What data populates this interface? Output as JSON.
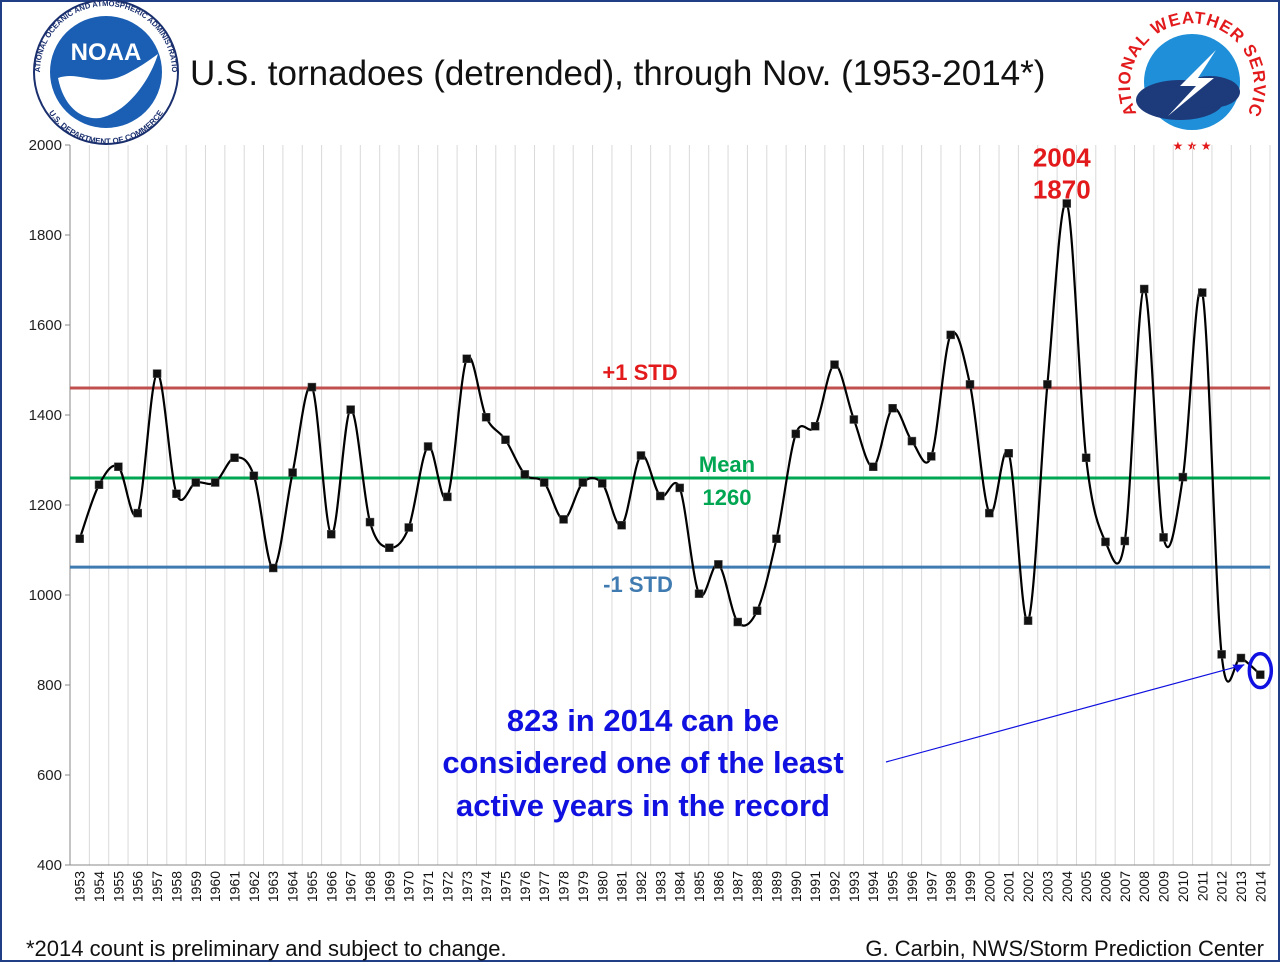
{
  "header": {
    "title": "U.S. tornadoes (detrended), through Nov. (1953-2014*)"
  },
  "footer": {
    "note": "*2014 count is preliminary and subject to change.",
    "credit": "G. Carbin, NWS/Storm Prediction Center"
  },
  "logos": {
    "noaa": {
      "center": "NOAA",
      "ring_top": "NATIONAL OCEANIC AND ATMOSPHERIC ADMINISTRATION",
      "ring_bottom": "U.S. DEPARTMENT OF COMMERCE"
    },
    "nws": {
      "ring": "NATIONAL WEATHER SERVICE"
    }
  },
  "colors": {
    "series": "#000000",
    "plus_std": "#c0504d",
    "mean": "#00a651",
    "minus_std": "#3f7ab0",
    "peak_label": "#e31a1c",
    "annotation": "#1010e0",
    "frame": "#1f3e86"
  },
  "chart_data": {
    "type": "line",
    "title": "U.S. tornadoes (detrended), through Nov. (1953-2014*)",
    "xlabel": "",
    "ylabel": "",
    "ylim": [
      400,
      2000
    ],
    "yticks": [
      400,
      600,
      800,
      1000,
      1200,
      1400,
      1600,
      1800,
      2000
    ],
    "grid": "vertical",
    "categories": [
      "1953",
      "1954",
      "1955",
      "1956",
      "1957",
      "1958",
      "1959",
      "1960",
      "1961",
      "1962",
      "1963",
      "1964",
      "1965",
      "1966",
      "1967",
      "1968",
      "1969",
      "1970",
      "1971",
      "1972",
      "1973",
      "1974",
      "1975",
      "1976",
      "1977",
      "1978",
      "1979",
      "1980",
      "1981",
      "1982",
      "1983",
      "1984",
      "1985",
      "1986",
      "1987",
      "1988",
      "1989",
      "1990",
      "1991",
      "1992",
      "1993",
      "1994",
      "1995",
      "1996",
      "1997",
      "1998",
      "1999",
      "2000",
      "2001",
      "2002",
      "2003",
      "2004",
      "2005",
      "2006",
      "2007",
      "2008",
      "2009",
      "2010",
      "2011",
      "2012",
      "2013",
      "2014"
    ],
    "series": [
      {
        "name": "Detrended tornado count",
        "values": [
          1125,
          1245,
          1285,
          1182,
          1492,
          1225,
          1250,
          1250,
          1305,
          1265,
          1060,
          1272,
          1462,
          1135,
          1412,
          1162,
          1105,
          1150,
          1330,
          1218,
          1525,
          1395,
          1345,
          1268,
          1250,
          1168,
          1250,
          1248,
          1155,
          1310,
          1220,
          1238,
          1003,
          1068,
          940,
          965,
          1125,
          1358,
          1375,
          1512,
          1390,
          1285,
          1415,
          1342,
          1308,
          1578,
          1468,
          1182,
          1315,
          943,
          1468,
          1870,
          1305,
          1118,
          1120,
          1680,
          1128,
          1262,
          1672,
          868,
          860,
          823
        ]
      }
    ],
    "reference_lines": [
      {
        "name": "+1 STD",
        "value": 1460,
        "label": "+1 STD"
      },
      {
        "name": "Mean",
        "value": 1260,
        "label_line1": "Mean",
        "label_line2": "1260"
      },
      {
        "name": "-1 STD",
        "value": 1062,
        "label": "-1 STD"
      }
    ],
    "annotations": {
      "peak": {
        "year": "2004",
        "value": "1870"
      },
      "note": {
        "lines": [
          "823 in 2014 can be",
          "considered one of the least",
          "active years in the record"
        ],
        "target_year": "2014"
      }
    }
  }
}
